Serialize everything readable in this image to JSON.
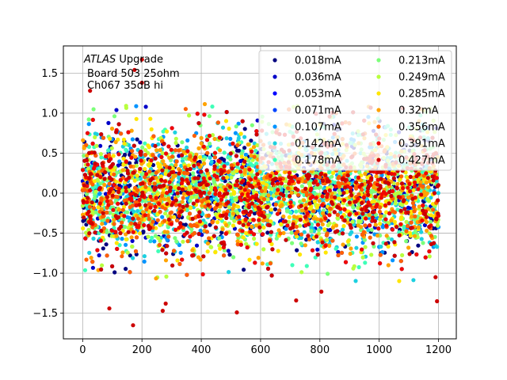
{
  "chart_data": {
    "type": "scatter",
    "title": "",
    "xlabel": "",
    "ylabel": "",
    "xlim": [
      -65,
      1260
    ],
    "ylim": [
      -1.82,
      1.84
    ],
    "grid": true,
    "x_ticks": [
      0,
      200,
      400,
      600,
      800,
      1000,
      1200
    ],
    "x_tick_labels": [
      "0",
      "200",
      "400",
      "600",
      "800",
      "1000",
      "1200"
    ],
    "y_ticks": [
      -1.5,
      -1.0,
      -0.5,
      0.0,
      0.5,
      1.0,
      1.5
    ],
    "y_tick_labels": [
      "−1.5",
      "−1.0",
      "−0.5",
      "0.0",
      "0.5",
      "1.0",
      "1.5"
    ],
    "annotation": {
      "line1_italic": "ATLAS",
      "line1_rest": " Upgrade",
      "line2": "Board 503 25ohm",
      "line3": "Ch067 35dB hi"
    },
    "legend_placement": "top-right",
    "legend_columns": 2,
    "x_range": [
      0,
      1200
    ],
    "series": [
      {
        "name": "0.018mA",
        "color": "#00007f",
        "center": 0.02,
        "spread": 0.38
      },
      {
        "name": "0.036mA",
        "color": "#0000c8",
        "center": 0.02,
        "spread": 0.38
      },
      {
        "name": "0.053mA",
        "color": "#0000ff",
        "center": 0.02,
        "spread": 0.38
      },
      {
        "name": "0.071mA",
        "color": "#0044ff",
        "center": 0.02,
        "spread": 0.38
      },
      {
        "name": "0.107mA",
        "color": "#0094ff",
        "center": 0.02,
        "spread": 0.38
      },
      {
        "name": "0.142mA",
        "color": "#1cd0e0",
        "center": 0.02,
        "spread": 0.38
      },
      {
        "name": "0.178mA",
        "color": "#3effb8",
        "center": 0.02,
        "spread": 0.38
      },
      {
        "name": "0.213mA",
        "color": "#7cff79",
        "center": 0.02,
        "spread": 0.38
      },
      {
        "name": "0.249mA",
        "color": "#b8ff3e",
        "center": 0.02,
        "spread": 0.38
      },
      {
        "name": "0.285mA",
        "color": "#ffe600",
        "center": 0.02,
        "spread": 0.38
      },
      {
        "name": "0.32mA",
        "color": "#ffa300",
        "center": 0.02,
        "spread": 0.38
      },
      {
        "name": "0.356mA",
        "color": "#ff6000",
        "center": 0.02,
        "spread": 0.38
      },
      {
        "name": "0.391mA",
        "color": "#f10800",
        "center": 0.02,
        "spread": 0.38
      },
      {
        "name": "0.427mA",
        "color": "#cd0000",
        "center": 0.02,
        "spread": 0.38
      }
    ],
    "notable_points": [
      {
        "x": 200,
        "y": 1.67
      },
      {
        "x": 175,
        "y": 1.54
      },
      {
        "x": 25,
        "y": 1.28
      },
      {
        "x": 200,
        "y": 1.38
      },
      {
        "x": 170,
        "y": -1.65
      },
      {
        "x": 520,
        "y": -1.49
      },
      {
        "x": 1195,
        "y": -1.35
      },
      {
        "x": 805,
        "y": -1.23
      },
      {
        "x": 90,
        "y": -1.44
      },
      {
        "x": 270,
        "y": -1.47
      },
      {
        "x": 280,
        "y": -1.38
      },
      {
        "x": 720,
        "y": -1.34
      },
      {
        "x": 1190,
        "y": -1.05
      }
    ]
  }
}
